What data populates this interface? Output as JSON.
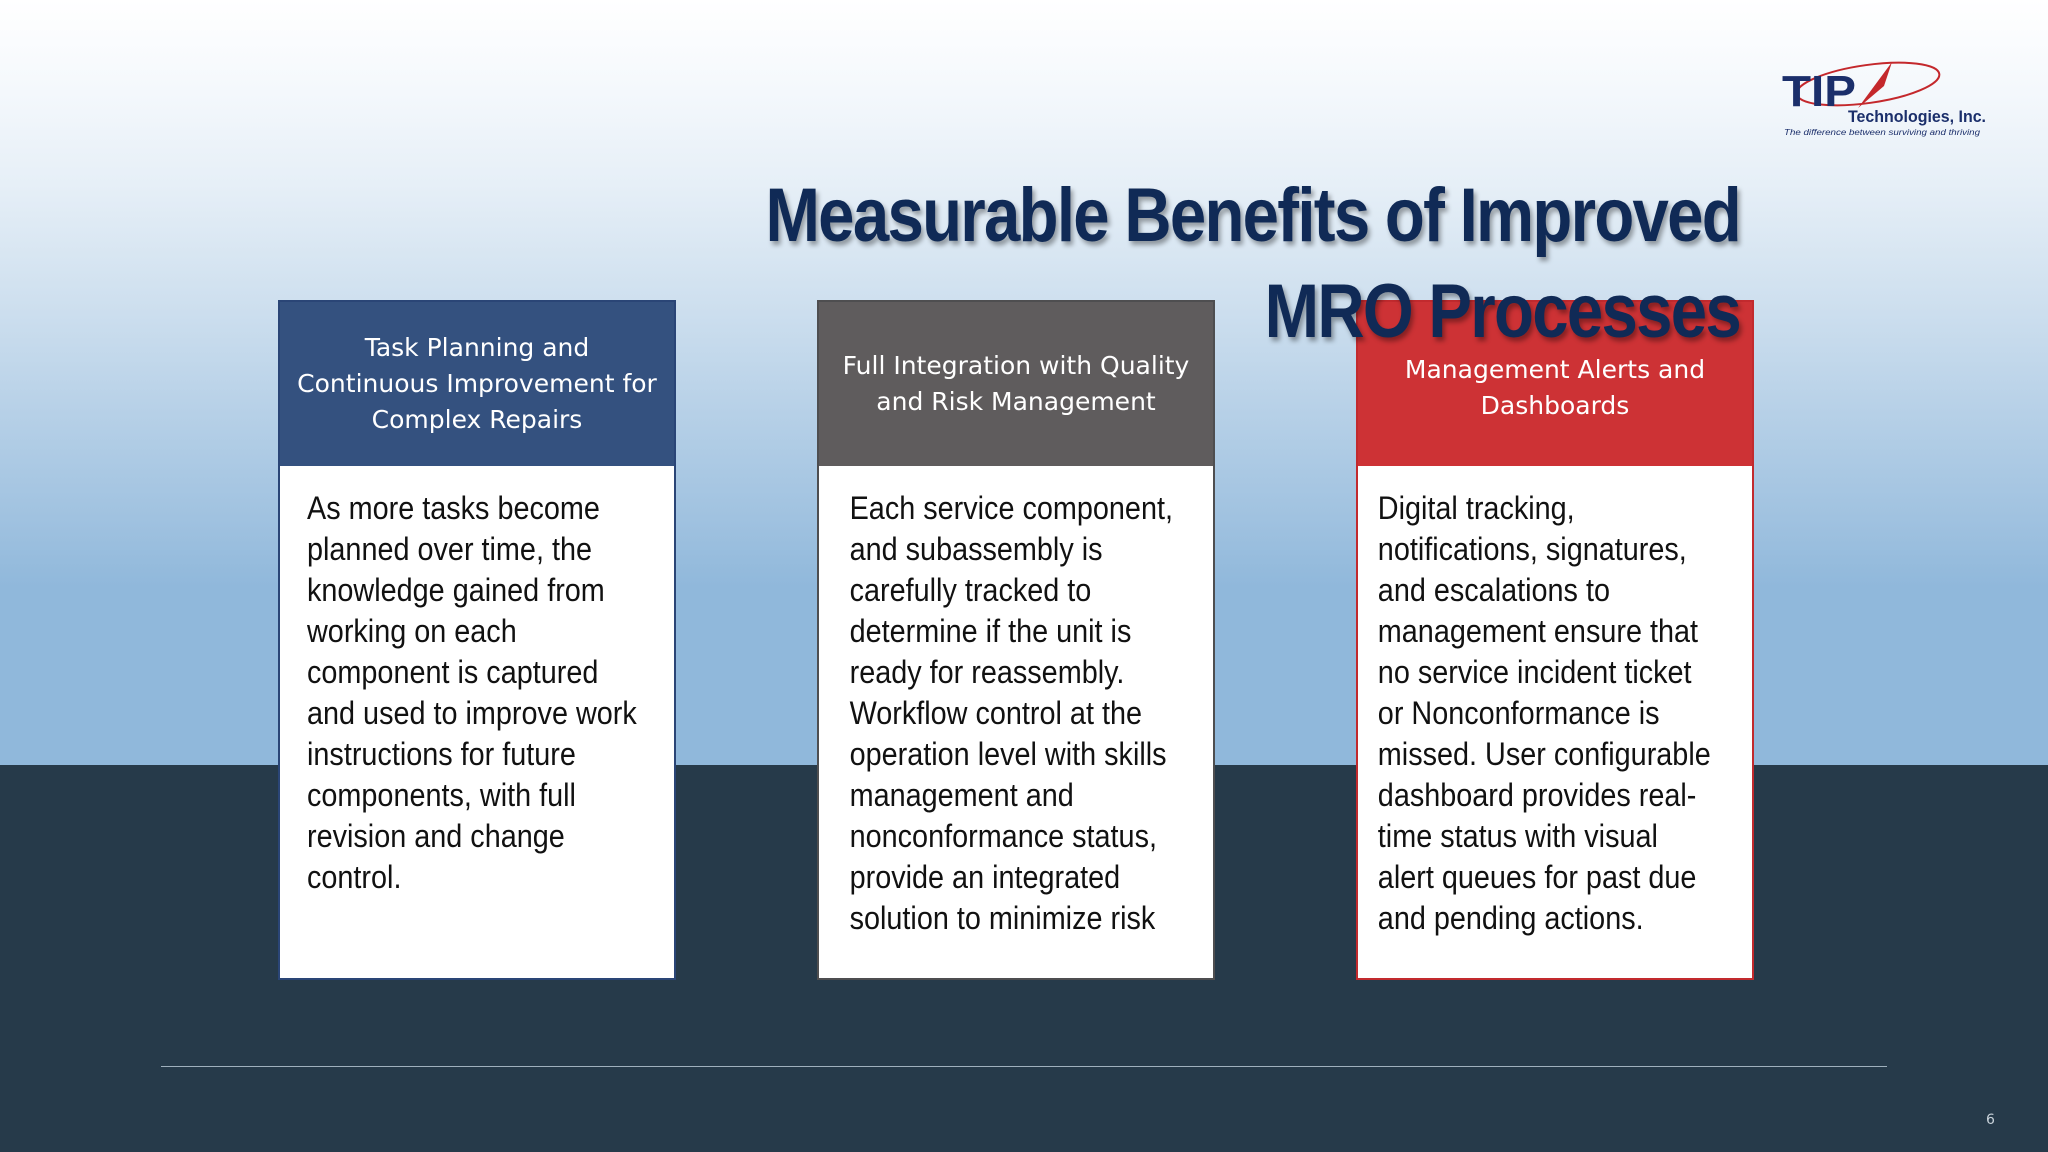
{
  "slide": {
    "title": "Measurable Benefits of Improved MRO Processes",
    "page_number": "6"
  },
  "logo": {
    "brand": "TIP",
    "name": "Technologies, Inc.",
    "tagline": "The difference between surviving and thriving"
  },
  "cards": [
    {
      "heading": "Task Planning and Continuous Improvement for Complex Repairs",
      "body": "As more tasks become planned over time, the knowledge gained from working on each component is captured and used to improve work instructions for future components, with full revision and change control.",
      "header_color": "#34517f"
    },
    {
      "heading": "Full Integration with Quality and Risk Management",
      "body": "Each service component, and subassembly is carefully tracked to determine if the unit is ready for reassembly. Workflow control at the operation level with skills management and nonconformance status, provide an integrated solution to minimize risk",
      "header_color": "#5f5c5d"
    },
    {
      "heading": "Management Alerts and Dashboards",
      "body": "Digital tracking, notifications, signatures, and escalations to management ensure that no service incident ticket or Nonconformance is missed. User configurable dashboard provides real-time status with visual alert queues for past due and pending actions.",
      "header_color": "#cd3235"
    }
  ],
  "colors": {
    "title": "#102a56",
    "dark_band": "#263a4a"
  }
}
